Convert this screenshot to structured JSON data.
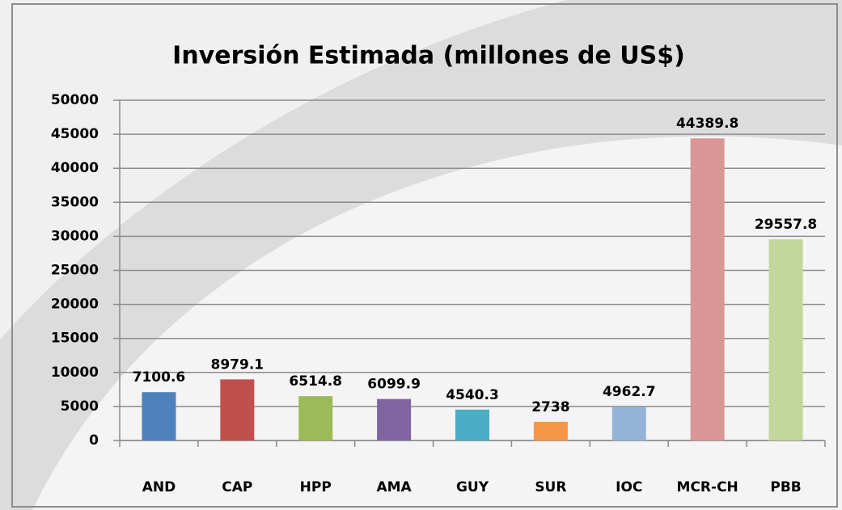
{
  "chart_data": {
    "type": "bar",
    "title": "Inversión Estimada (millones de US$)",
    "categories": [
      "AND",
      "CAP",
      "HPP",
      "AMA",
      "GUY",
      "SUR",
      "IOC",
      "MCR-CH",
      "PBB"
    ],
    "values": [
      7100.6,
      8979.1,
      6514.8,
      6099.9,
      4540.3,
      2738,
      4962.7,
      44389.8,
      29557.8
    ],
    "colors": [
      "#4f81bd",
      "#c0504d",
      "#9bbb59",
      "#8064a2",
      "#4bacc6",
      "#f79646",
      "#95b3d7",
      "#d99694",
      "#c3d69b"
    ],
    "ylim": [
      0,
      50000
    ],
    "yticks": [
      0,
      5000,
      10000,
      15000,
      20000,
      25000,
      30000,
      35000,
      40000,
      45000,
      50000
    ],
    "grid": true
  }
}
